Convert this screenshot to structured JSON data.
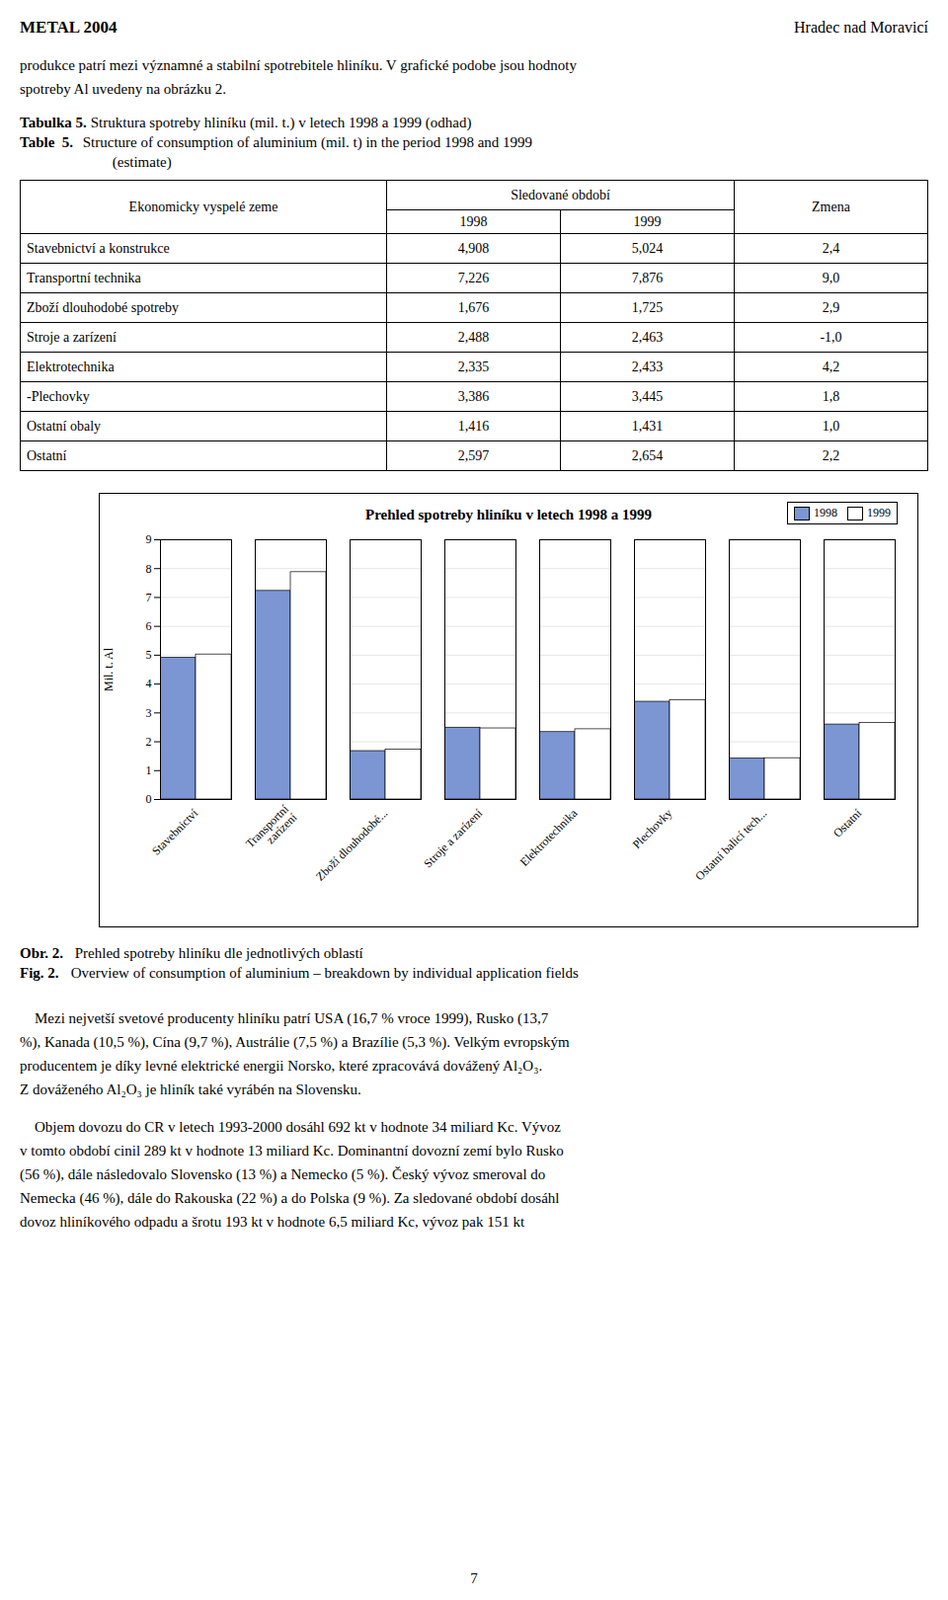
{
  "header_left": "METAL 2004",
  "header_right": "Hradec nad Moravicí",
  "para1": "produkce patrí mezi významné a stabilní spotrebitele hliníku. V grafické podobe jsou hodnoty\nspotreby Al uvedeny na obrázku 2.",
  "tabulka_label": "Tabulka 5.",
  "tabulka_desc": " Struktura spotreby hliníku (mil. t.) v letech 1998 a 1999 (odhad)",
  "table_label": "Table  5.",
  "table_desc": " Structure of consumption of aluminium (mil. t) in the period 1998 and 1999",
  "table_desc2": "         (estimate)",
  "table": {
    "col_header1": "Ekonomicky vyspelé zeme",
    "col_header2": "Sledované období",
    "col_header3": "Zmena",
    "col_sub1": "1998",
    "col_sub2": "1999",
    "rows": [
      [
        "Stavebnictví a konstrukce",
        "4,908",
        "5,024",
        "2,4"
      ],
      [
        "Transportní technika",
        "7,226",
        "7,876",
        "9,0"
      ],
      [
        "Zboží dlouhodobé spotreby",
        "1,676",
        "1,725",
        "2,9"
      ],
      [
        "Stroje a zarízení",
        "2,488",
        "2,463",
        "-1,0"
      ],
      [
        "Elektrotechnika",
        "2,335",
        "2,433",
        "4,2"
      ],
      [
        "-Plechovky",
        "3,386",
        "3,445",
        "1,8"
      ],
      [
        "Ostatní obaly",
        "1,416",
        "1,431",
        "1,0"
      ],
      [
        "Ostatní",
        "2,597",
        "2,654",
        "2,2"
      ]
    ]
  },
  "chart_data": {
    "type": "bar",
    "title": "Prehled spotreby hliníku v letech 1998 a 1999",
    "ylabel": "Mil. t. Al",
    "categories": [
      "Stavebnictví",
      "Transportní\nzarízení",
      "Zboží dlouhodobé...",
      "Stroje a zarízení",
      "Elektrotechnika",
      "Plechovky",
      "Ostatní balicí tech...",
      "Ostatní"
    ],
    "series": [
      {
        "name": "1998",
        "color": "#7b96d2",
        "values": [
          4.908,
          7.226,
          1.676,
          2.488,
          2.335,
          3.386,
          1.416,
          2.597
        ]
      },
      {
        "name": "1999",
        "color": "#ffffff",
        "values": [
          5.024,
          7.876,
          1.725,
          2.463,
          2.433,
          3.445,
          1.431,
          2.654
        ]
      }
    ],
    "ylim": [
      0,
      9
    ],
    "yticks": [
      0,
      1,
      2,
      3,
      4,
      5,
      6,
      7,
      8,
      9
    ],
    "grid": true,
    "legend": "upper right"
  },
  "obr_label": "Obr. 2.",
  "obr_desc": " Prehled spotreby hliníku dle jednotlivých oblastí",
  "fig_label": "Fig. 2.",
  "fig_desc": " Overview of consumption of aluminium – breakdown by individual application fields",
  "para2": "    Mezi nejvetší svetové producenty hliníku patrí USA (16,7 % vroce 1999), Rusko (13,7\n%), Kanada (10,5 %), Cína (9,7 %), Austrálie (7,5 %) a Brazílie (5,3 %). Velkým evropským\nproducentem je díky levné elektrické energii Norsko, které zpracovává dovážený Al₂O₃.\nZ dováženého Al₂O₃ je hliník také vyrábén na Slovensku.",
  "para3": "    Objem dovozu do CR v letech 1993-2000 dosáhl 692 kt v hodnote 34 miliard Kc. Vývoz\nv tomto období cinil 289 kt v hodnote 13 miliard Kc. Dominantní dovozní zemí bylo Rusko\n(56 %), dále následovalo Slovensko (13 %) a Nemecko (5 %). Český vývoz smeroval do\nNemecka (46 %), dále do Rakouska (22 %) a do Polska (9 %). Za sledované období dosáhl\ndovoz hliníkového odpadu a šrotu 193 kt v hodnote 6,5 miliard Kc, vývoz pak 151 kt",
  "page_number": "7"
}
